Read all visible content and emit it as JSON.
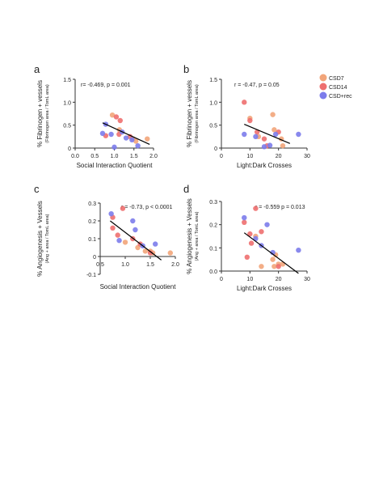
{
  "legend": [
    {
      "label": "CSD7",
      "color": "#F2A57A"
    },
    {
      "label": "CSD14",
      "color": "#EE6F6F"
    },
    {
      "label": "CSD+rec",
      "color": "#7C7CEB"
    }
  ],
  "chart_data": [
    {
      "type": "scatter",
      "panel": "a",
      "annotation": "r= -0.469, p = 0.001",
      "ylabel": "% Fibrinogen + vessels",
      "ylabel_sub": "(Fibrinogen area / TomL area)",
      "xlabel": "Social Interaction Quotient",
      "xlim": [
        0,
        2
      ],
      "ylim": [
        0,
        1.5
      ],
      "xticks": [
        0.0,
        0.5,
        1.0,
        1.5,
        2.0
      ],
      "xtick_labels": [
        "0.0",
        "0.5",
        "1.0",
        "1.5",
        "2.0"
      ],
      "yticks": [
        0,
        0.5,
        1.0,
        1.5
      ],
      "ytick_labels": [
        "0",
        "0.5",
        "1.0",
        "1.5"
      ],
      "fit": {
        "x": [
          0.7,
          1.9
        ],
        "y": [
          0.55,
          0.08
        ]
      },
      "series": [
        {
          "name": "CSD7",
          "color": "#F2A57A",
          "points": [
            [
              0.95,
              0.72
            ],
            [
              1.13,
              0.4
            ],
            [
              1.48,
              0.2
            ],
            [
              1.55,
              0.15
            ],
            [
              1.84,
              0.2
            ]
          ]
        },
        {
          "name": "CSD14",
          "color": "#EE6F6F",
          "points": [
            [
              0.78,
              0.27
            ],
            [
              1.05,
              0.68
            ],
            [
              1.15,
              0.6
            ],
            [
              1.12,
              0.3
            ],
            [
              1.4,
              0.25
            ]
          ]
        },
        {
          "name": "CSD+rec",
          "color": "#7C7CEB",
          "points": [
            [
              0.7,
              0.32
            ],
            [
              0.78,
              0.52
            ],
            [
              0.92,
              0.3
            ],
            [
              1.0,
              0.02
            ],
            [
              1.2,
              0.35
            ],
            [
              1.3,
              0.22
            ],
            [
              1.45,
              0.18
            ],
            [
              1.6,
              0.05
            ]
          ]
        }
      ]
    },
    {
      "type": "scatter",
      "panel": "b",
      "annotation": "r = -0.47, p = 0.05",
      "ylabel": "% Fibrinogen + vessels",
      "ylabel_sub": "(Fibrinogen area / TomL area)",
      "xlabel": "Light:Dark Crosses",
      "xlim": [
        0,
        30
      ],
      "ylim": [
        0,
        1.5
      ],
      "xticks": [
        0,
        10,
        20,
        30
      ],
      "xtick_labels": [
        "0",
        "10",
        "20",
        "30"
      ],
      "yticks": [
        0,
        0.5,
        1.0,
        1.5
      ],
      "ytick_labels": [
        "0",
        "0.5",
        "1.0",
        "1.5"
      ],
      "fit": {
        "x": [
          8,
          24
        ],
        "y": [
          0.52,
          0.1
        ]
      },
      "series": [
        {
          "name": "CSD7",
          "color": "#F2A57A",
          "points": [
            [
              10,
              0.65
            ],
            [
              13,
              0.25
            ],
            [
              18,
              0.73
            ],
            [
              18.5,
              0.4
            ],
            [
              21,
              0.2
            ],
            [
              21.5,
              0.05
            ]
          ]
        },
        {
          "name": "CSD14",
          "color": "#EE6F6F",
          "points": [
            [
              8,
              1.0
            ],
            [
              10,
              0.6
            ],
            [
              12.5,
              0.35
            ],
            [
              15,
              0.2
            ],
            [
              16,
              0.05
            ],
            [
              20,
              0.35
            ]
          ]
        },
        {
          "name": "CSD+rec",
          "color": "#7C7CEB",
          "points": [
            [
              8,
              0.3
            ],
            [
              12,
              0.25
            ],
            [
              15,
              0.03
            ],
            [
              17,
              0.06
            ],
            [
              19,
              0.3
            ],
            [
              27,
              0.3
            ]
          ]
        }
      ]
    },
    {
      "type": "scatter",
      "panel": "c",
      "annotation": "r = -0.73, p < 0.0001",
      "ylabel": "% Angiogenesis + Vessels",
      "ylabel_sub": "(Ang + area / TomL area)",
      "xlabel": "Social Interaction Quotient",
      "xlim": [
        0,
        2
      ],
      "ylim": [
        -0.1,
        0.3
      ],
      "xticks": [
        0.5,
        1.0,
        1.5,
        2.0
      ],
      "xtick_labels": [
        "0.5",
        "1.0",
        "1.5",
        "2.0"
      ],
      "yticks": [
        -0.1,
        0,
        0.1,
        0.2,
        0.3
      ],
      "ytick_labels": [
        "-0.1",
        "0",
        "0.1",
        "0.2",
        "0.3"
      ],
      "fit": {
        "x": [
          0.7,
          1.72
        ],
        "y": [
          0.2,
          -0.02
        ]
      },
      "series": [
        {
          "name": "CSD7",
          "color": "#F2A57A",
          "points": [
            [
              1.0,
              0.08
            ],
            [
              1.25,
              0.05
            ],
            [
              1.4,
              0.03
            ],
            [
              1.5,
              0.03
            ],
            [
              1.55,
              0.02
            ],
            [
              1.9,
              0.02
            ]
          ]
        },
        {
          "name": "CSD14",
          "color": "#EE6F6F",
          "points": [
            [
              0.75,
              0.22
            ],
            [
              0.75,
              0.16
            ],
            [
              0.85,
              0.12
            ],
            [
              0.95,
              0.27
            ],
            [
              1.15,
              0.1
            ],
            [
              1.3,
              0.07
            ],
            [
              1.5,
              0.02
            ]
          ]
        },
        {
          "name": "CSD+rec",
          "color": "#7C7CEB",
          "points": [
            [
              0.72,
              0.24
            ],
            [
              0.88,
              0.09
            ],
            [
              1.15,
              0.2
            ],
            [
              1.2,
              0.15
            ],
            [
              1.35,
              0.06
            ],
            [
              1.6,
              0.07
            ]
          ]
        }
      ]
    },
    {
      "type": "scatter",
      "panel": "d",
      "annotation": "r = -0.559 p = 0.013",
      "ylabel": "% Angiogenesis + Vessels",
      "ylabel_sub": "(Ang + area / TomL area)",
      "xlabel": "Light:Dark Crosses",
      "xlim": [
        0,
        30
      ],
      "ylim": [
        0,
        0.3
      ],
      "xticks": [
        0,
        10,
        20,
        30
      ],
      "xtick_labels": [
        "0",
        "10",
        "20",
        "30"
      ],
      "yticks": [
        0,
        0.1,
        0.2,
        0.3
      ],
      "ytick_labels": [
        "0.0",
        "0.1",
        "0.2",
        "0.3"
      ],
      "fit": {
        "x": [
          8,
          27
        ],
        "y": [
          0.165,
          -0.01
        ]
      },
      "series": [
        {
          "name": "CSD7",
          "color": "#F2A57A",
          "points": [
            [
              12,
              0.15
            ],
            [
              14,
              0.02
            ],
            [
              18,
              0.05
            ],
            [
              18.5,
              0.02
            ],
            [
              19,
              0.07
            ],
            [
              20,
              0.03
            ],
            [
              21.5,
              0.03
            ]
          ]
        },
        {
          "name": "CSD14",
          "color": "#EE6F6F",
          "points": [
            [
              8,
              0.21
            ],
            [
              9,
              0.06
            ],
            [
              10,
              0.16
            ],
            [
              10.5,
              0.12
            ],
            [
              12,
              0.27
            ],
            [
              14,
              0.17
            ],
            [
              20,
              0.02
            ]
          ]
        },
        {
          "name": "CSD+rec",
          "color": "#7C7CEB",
          "points": [
            [
              8,
              0.23
            ],
            [
              12,
              0.14
            ],
            [
              14,
              0.11
            ],
            [
              16,
              0.2
            ],
            [
              18,
              0.08
            ],
            [
              27,
              0.09
            ]
          ]
        }
      ]
    }
  ]
}
